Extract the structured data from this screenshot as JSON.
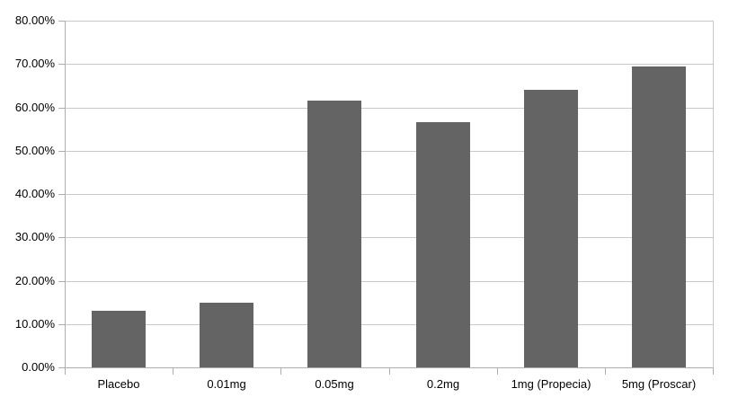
{
  "chart_data": {
    "type": "bar",
    "title": "",
    "xlabel": "",
    "ylabel": "",
    "categories": [
      "Placebo",
      "0.01mg",
      "0.05mg",
      "0.2mg",
      "1mg (Propecia)",
      "5mg (Proscar)"
    ],
    "values": [
      13,
      15,
      61.5,
      56.5,
      64,
      69.5
    ],
    "ylim": [
      0,
      80
    ],
    "ytick_step": 10,
    "ytick_labels": [
      "0.00%",
      "10.00%",
      "20.00%",
      "30.00%",
      "40.00%",
      "50.00%",
      "60.00%",
      "70.00%",
      "80.00%"
    ],
    "grid": true,
    "legend": false,
    "colors": {
      "bar": "#646464",
      "gridline": "#c9c9c9",
      "axis": "#aeaeae",
      "background": "#ffffff",
      "text": "#000000"
    }
  }
}
